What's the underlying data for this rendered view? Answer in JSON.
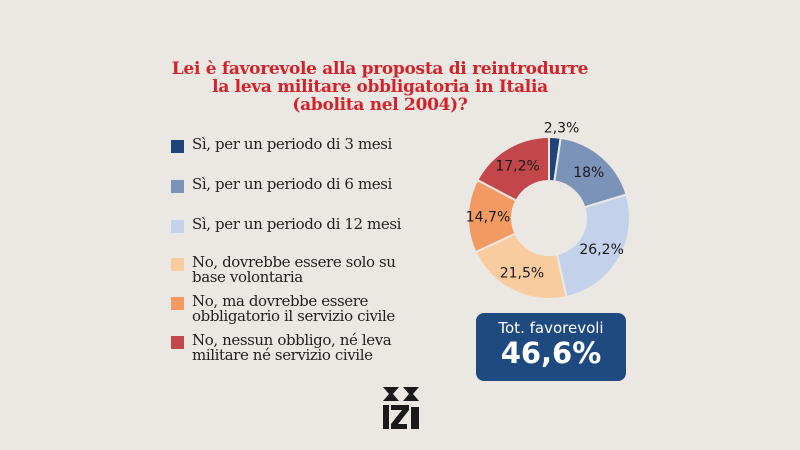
{
  "title": {
    "lines": [
      "Lei è favorevole alla proposta di reintrodurre",
      "la leva militare obbligatoria in Italia",
      "(abolita nel 2004)?"
    ]
  },
  "chart_data": {
    "type": "pie",
    "donut": true,
    "title": "Lei è favorevole alla proposta di reintrodurre la leva militare obbligatoria in Italia (abolita nel 2004)?",
    "legend_position": "left",
    "categories": [
      "Sì, per un periodo di 3 mesi",
      "Sì, per un periodo di 6 mesi",
      "Sì, per un periodo di 12 mesi",
      "No, dovrebbe essere solo su base volontaria",
      "No, ma dovrebbe essere obbligatorio il servizio civile",
      "No, nessun obbligo, né leva militare né servizio civile"
    ],
    "legend_lines": [
      [
        "Sì, per un periodo di 3 mesi"
      ],
      [
        "Sì, per un periodo di 6 mesi"
      ],
      [
        "Sì, per un periodo di 12 mesi"
      ],
      [
        "No, dovrebbe essere solo su",
        "base volontaria"
      ],
      [
        "No, ma dovrebbe essere",
        "obbligatorio il servizio civile"
      ],
      [
        "No, nessun obbligo, né leva",
        "militare né servizio civile"
      ]
    ],
    "values": [
      2.3,
      18,
      26.2,
      21.5,
      14.7,
      17.2
    ],
    "labels": [
      "2,3%",
      "18%",
      "26,2%",
      "21,5%",
      "14,7%",
      "17,2%"
    ],
    "colors": [
      "#1f4477",
      "#7b93b8",
      "#c3d2ea",
      "#f8cc9e",
      "#f29a62",
      "#c2464a"
    ]
  },
  "summary": {
    "label": "Tot. favorevoli",
    "value": "46,6%"
  },
  "colors": {
    "title": "#d4222b",
    "box": "#1f4a80",
    "background": "#ebe8e3"
  },
  "logo_text": "IZI"
}
